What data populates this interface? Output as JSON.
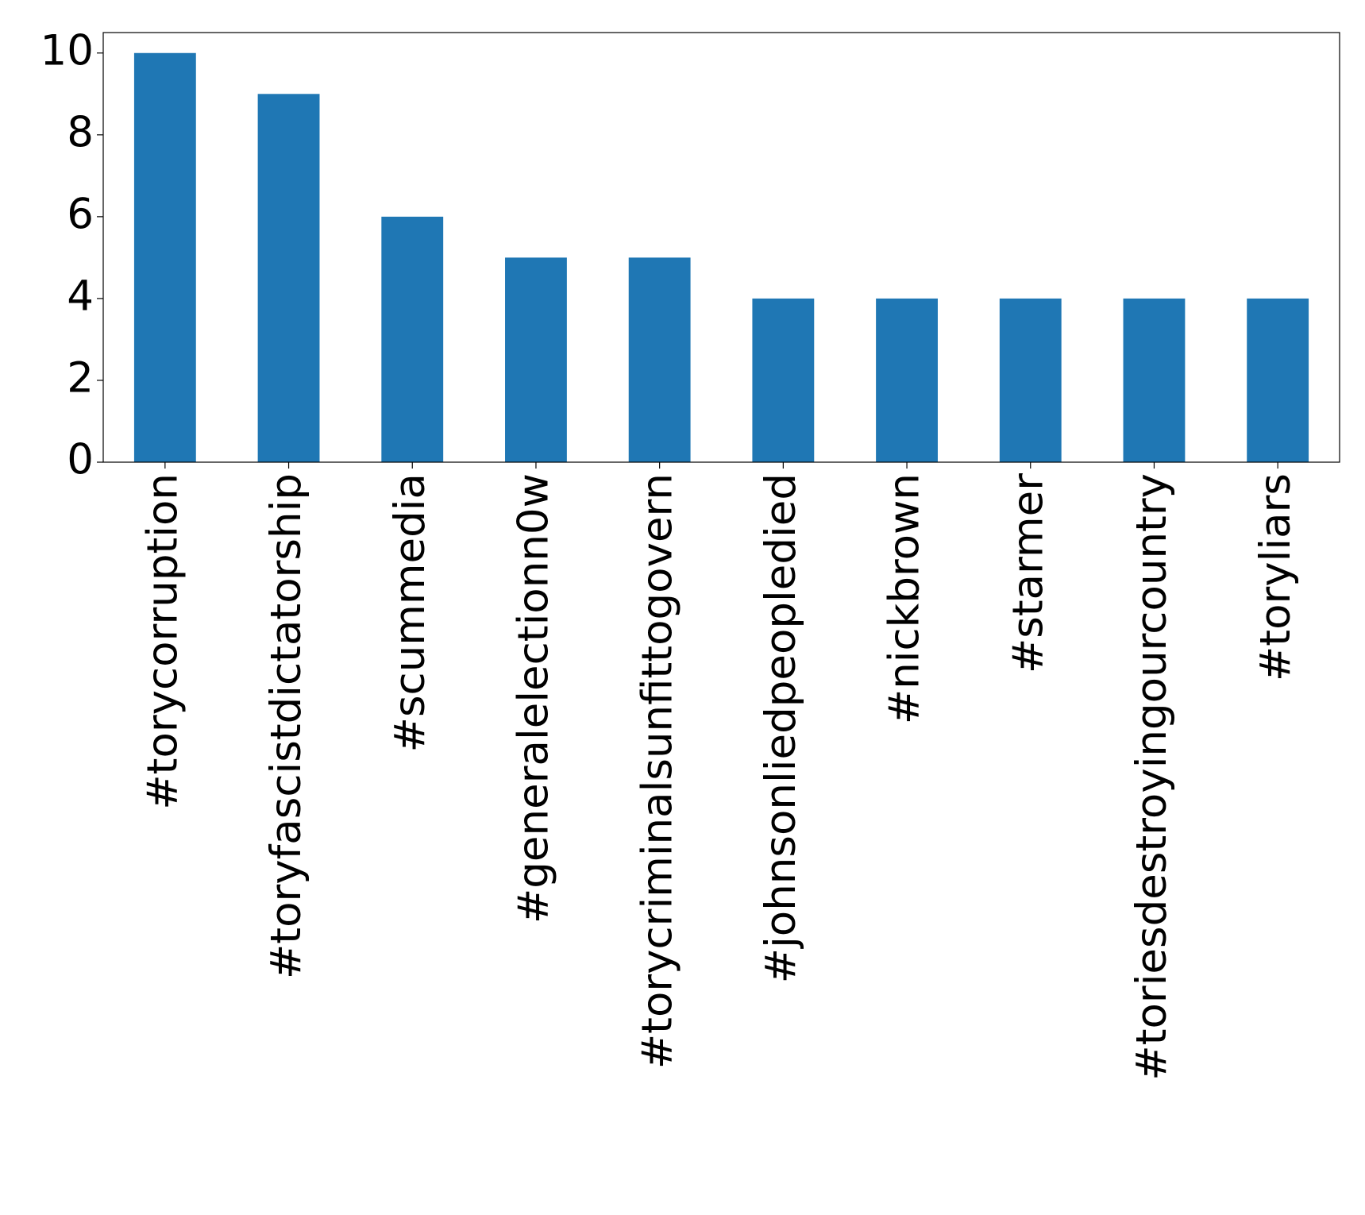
{
  "chart_data": {
    "type": "bar",
    "categories": [
      "#torycorruption",
      "#toryfascistdictatorship",
      "#scummedia",
      "#generalelectionn0w",
      "#torycriminalsunfittogovern",
      "#johnsonliedpeopledied",
      "#nickbrown",
      "#starmer",
      "#toriesdestroyingourcountry",
      "#toryliars"
    ],
    "values": [
      10,
      9,
      6,
      5,
      5,
      4,
      4,
      4,
      4,
      4
    ],
    "color": "#1f77b4",
    "ylim": [
      0,
      10.5
    ],
    "yticks": [
      0,
      2,
      4,
      6,
      8,
      10
    ],
    "grid": false
  }
}
